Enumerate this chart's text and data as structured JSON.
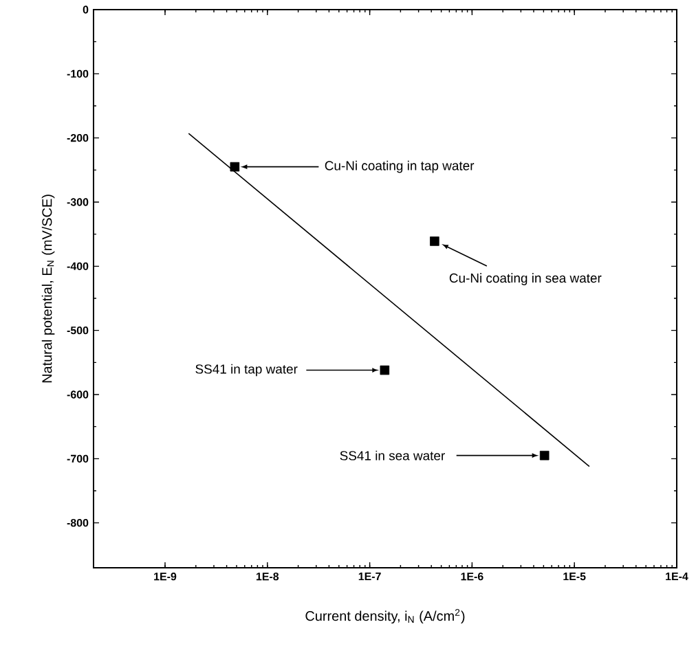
{
  "chart_data": {
    "type": "scatter",
    "xlabel": "Current density,  i$_{N}$ (A/cm$^{2}$)",
    "ylabel": "Natural potential,  E$_{N}$ (mV/SCE)",
    "log": "x",
    "marker": "square",
    "xlim": [
      2e-10,
      0.0001
    ],
    "ylim": [
      -870,
      0
    ],
    "xticks": [
      {
        "value": 1e-09,
        "label": "1E-9"
      },
      {
        "value": 1e-08,
        "label": "1E-8"
      },
      {
        "value": 1e-07,
        "label": "1E-7"
      },
      {
        "value": 1e-06,
        "label": "1E-6"
      },
      {
        "value": 1e-05,
        "label": "1E-5"
      },
      {
        "value": 0.0001,
        "label": "1E-4"
      }
    ],
    "yticks": [
      0,
      -100,
      -200,
      -300,
      -400,
      -500,
      -600,
      -700,
      -800
    ],
    "series": [
      {
        "color": "#000000",
        "x": [
          4.8e-09,
          4.3e-07,
          1.4e-07,
          5.1e-06
        ],
        "values": [
          -245,
          -361,
          -562,
          -695
        ]
      },
      {
        "type": "line",
        "color": "#000000",
        "marker": "none",
        "line_style": "solid",
        "x": [
          1.7e-09,
          1.4e-05
        ],
        "values": [
          -193,
          -712
        ]
      }
    ],
    "annotations": [
      {
        "text": "Cu-Ni coating in tap water",
        "x": 4.8e-09,
        "y": -245
      },
      {
        "text": "Cu-Ni coating in sea water",
        "x": 4.3e-07,
        "y": -361
      },
      {
        "text": "SS41 in tap water",
        "x": 1.4e-07,
        "y": -562
      },
      {
        "text": "SS41 in sea water",
        "x": 5.1e-06,
        "y": -695
      }
    ]
  }
}
